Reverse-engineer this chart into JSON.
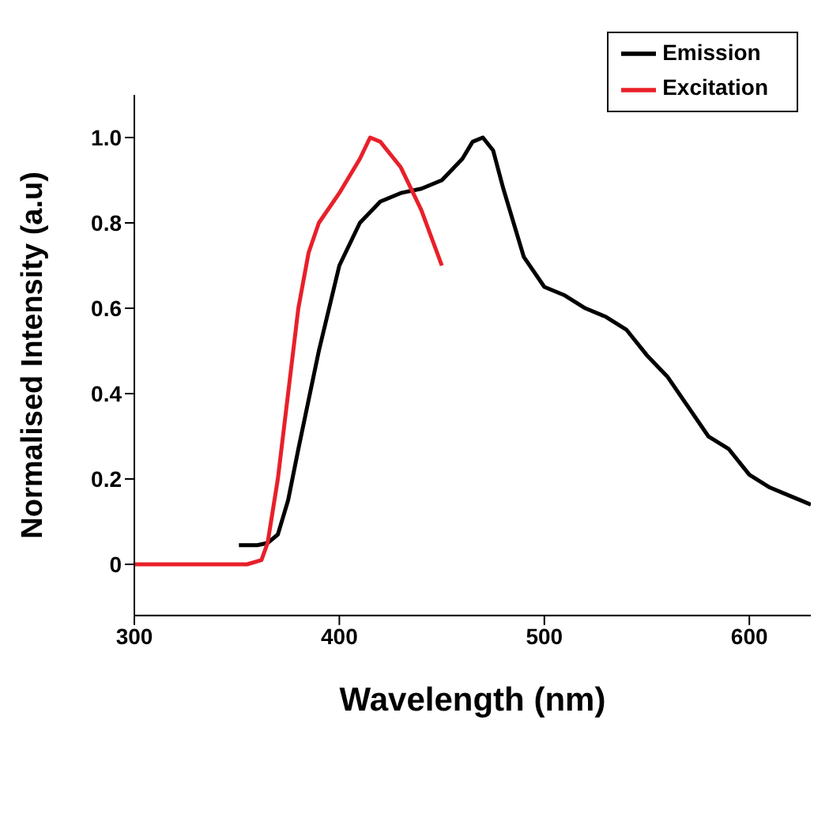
{
  "chart_data": {
    "type": "line",
    "xlabel": "Wavelength (nm)",
    "ylabel": "Normalised Intensity (a.u)",
    "xlim": [
      300,
      630
    ],
    "ylim": [
      -0.12,
      1.1
    ],
    "xticks": [
      300,
      400,
      500,
      600
    ],
    "yticks": [
      {
        "value": 0,
        "label": "0"
      },
      0.2,
      0.4,
      0.6,
      0.8,
      {
        "value": 1,
        "label": "1.0"
      }
    ],
    "legend": "top right",
    "marker": "none",
    "line_style": "solid",
    "series": [
      {
        "name": "Emission",
        "color": "#000000",
        "x": [
          351,
          360,
          365,
          370,
          375,
          380,
          390,
          400,
          410,
          420,
          430,
          440,
          450,
          460,
          465,
          470,
          475,
          480,
          490,
          500,
          510,
          520,
          530,
          540,
          550,
          560,
          570,
          580,
          590,
          600,
          610,
          620,
          630
        ],
        "values": [
          0.045,
          0.045,
          0.05,
          0.07,
          0.15,
          0.27,
          0.5,
          0.7,
          0.8,
          0.85,
          0.87,
          0.88,
          0.9,
          0.95,
          0.99,
          1.0,
          0.97,
          0.88,
          0.72,
          0.65,
          0.63,
          0.6,
          0.58,
          0.55,
          0.49,
          0.44,
          0.37,
          0.3,
          0.27,
          0.21,
          0.18,
          0.16,
          0.14
        ]
      },
      {
        "name": "Excitation",
        "color": "#e8202a",
        "x": [
          300,
          355,
          362,
          365,
          370,
          375,
          380,
          385,
          390,
          400,
          410,
          415,
          420,
          430,
          440,
          450
        ],
        "values": [
          0,
          0,
          0.01,
          0.05,
          0.2,
          0.4,
          0.6,
          0.73,
          0.8,
          0.87,
          0.95,
          1.0,
          0.99,
          0.93,
          0.83,
          0.7
        ]
      }
    ]
  }
}
